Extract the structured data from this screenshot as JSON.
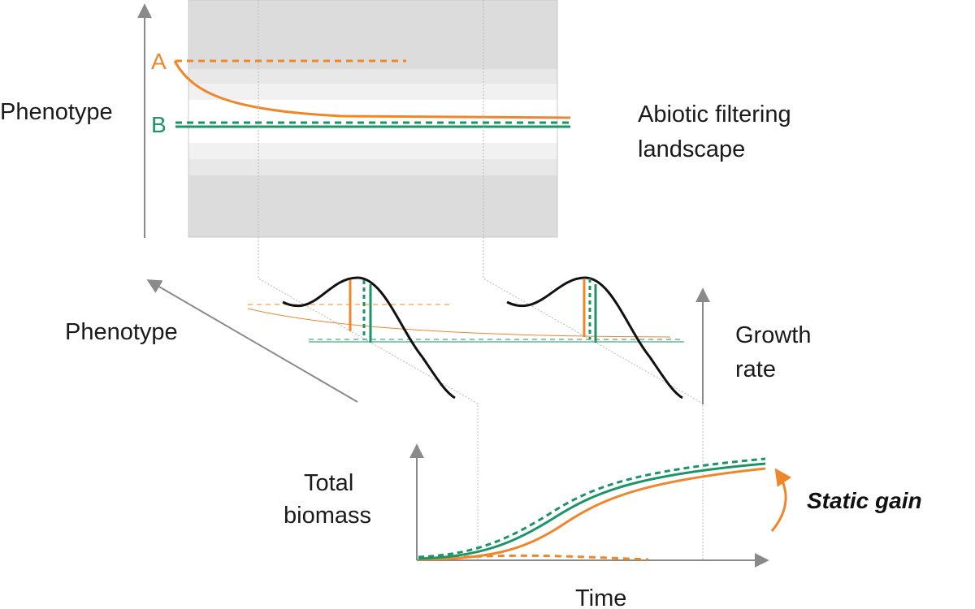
{
  "labels": {
    "phenotype_top": "Phenotype",
    "phenotype_mid": "Phenotype",
    "abiotic_line1": "Abiotic filtering",
    "abiotic_line2": "landscape",
    "growth_line1": "Growth",
    "growth_line2": "rate",
    "biomass_line1": "Total",
    "biomass_line2": "biomass",
    "time": "Time",
    "static_gain": "Static gain",
    "trait_a": "A",
    "trait_b": "B"
  },
  "colors": {
    "trait_a": "#f0862a",
    "trait_b": "#1b9466",
    "axis": "#8a8a8a",
    "band_dark": "#dcdcdc",
    "band_light": "#efefef",
    "curve": "#111111"
  }
}
